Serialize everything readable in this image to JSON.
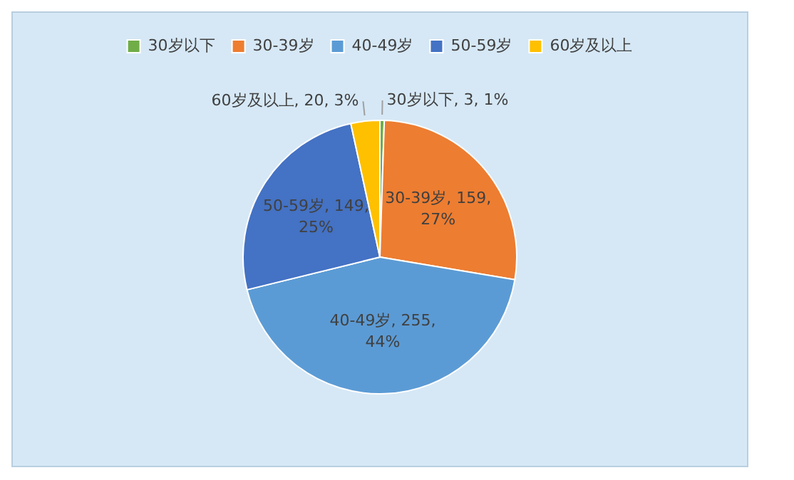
{
  "chart_data": {
    "type": "pie",
    "categories": [
      "30岁以下",
      "30-39岁",
      "40-49岁",
      "50-59岁",
      "60岁及以上"
    ],
    "values": [
      3,
      159,
      255,
      149,
      20
    ],
    "colors": [
      "#70ad47",
      "#ed7d31",
      "#5b9bd5",
      "#4472c4",
      "#ffc000"
    ],
    "value_labels": [
      "30岁以下, 3, 1%",
      "30-39岁, 159, 27%",
      "40-49岁, 255, 44%",
      "50-59岁, 149, 25%",
      "60岁及以上, 20, 3%"
    ],
    "legend": "top"
  }
}
